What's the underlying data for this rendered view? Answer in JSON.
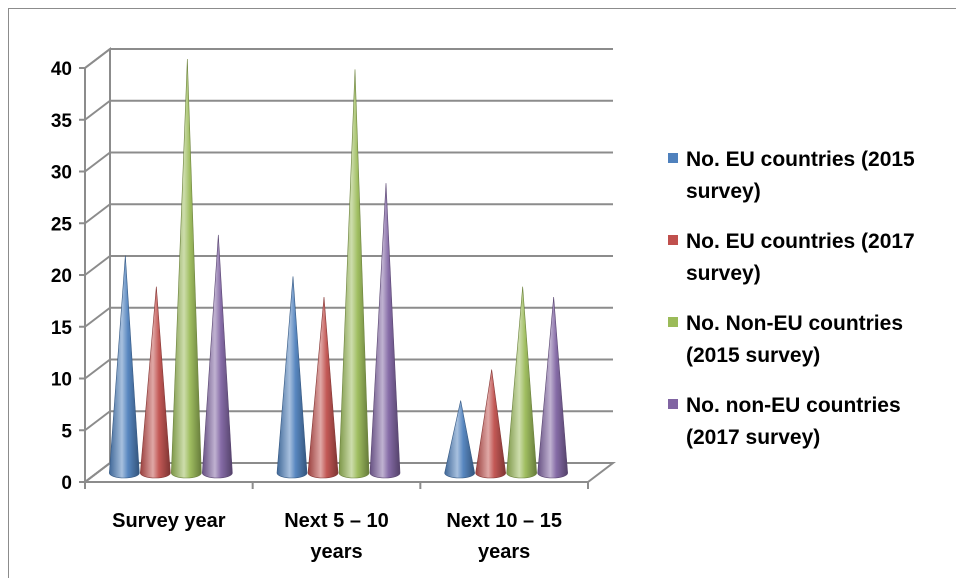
{
  "chart_data": {
    "type": "3d-cone-bar",
    "categories": [
      "Survey year",
      "Next 5 – 10 years",
      "Next 10 – 15 years"
    ],
    "category_label_lines": [
      [
        "Survey year"
      ],
      [
        "Next 5 – 10",
        "years"
      ],
      [
        "Next 10 – 15",
        "years"
      ]
    ],
    "series": [
      {
        "name": "No. EU countries (2015 survey)",
        "legend_lines": [
          "No. EU countries (2015",
          "survey)"
        ],
        "color": "#4f81bd",
        "values": [
          21,
          19,
          7
        ]
      },
      {
        "name": "No. EU countries (2017 survey)",
        "legend_lines": [
          "No. EU countries (2017",
          "survey)"
        ],
        "color": "#c0504d",
        "values": [
          18,
          17,
          10
        ]
      },
      {
        "name": "No. Non-EU countries (2015 survey)",
        "legend_lines": [
          "No. Non-EU countries",
          "(2015 survey)"
        ],
        "color": "#9bbb59",
        "values": [
          40,
          39,
          18
        ]
      },
      {
        "name": "No. non-EU countries (2017 survey)",
        "legend_lines": [
          "No. non-EU countries",
          "(2017 survey)"
        ],
        "color": "#8064a2",
        "values": [
          23,
          28,
          17
        ]
      }
    ],
    "ylim": [
      0,
      40
    ],
    "yticks": [
      0,
      5,
      10,
      15,
      20,
      25,
      30,
      35,
      40
    ],
    "grid": true,
    "legend_position": "right"
  }
}
